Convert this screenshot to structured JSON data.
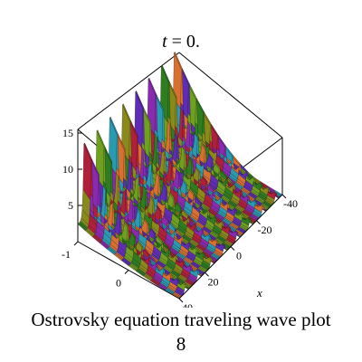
{
  "chart_data": {
    "type": "surface3d",
    "title": "t = 0.",
    "title_var": "t",
    "title_rest": " = 0.",
    "xlabel": "x",
    "ylabel": "",
    "zlabel": "",
    "x_ticks": [
      "-40",
      "-20",
      "0",
      "20",
      "40"
    ],
    "y_ticks": [
      "-1",
      "0"
    ],
    "z_ticks": [
      "5",
      "10",
      "15"
    ],
    "x_range": [
      -40,
      40
    ],
    "y_range": [
      -1,
      1
    ],
    "z_range": [
      0,
      16
    ],
    "peak_count": 8,
    "peak_height": 16
  },
  "caption": {
    "line1": "Ostrovsky equation  traveling wave plot",
    "line2": "8"
  },
  "colors": {
    "palette": [
      "#2e7d20",
      "#8a8a1a",
      "#b0203a",
      "#8a2ab0",
      "#2a9ab0",
      "#d87030",
      "#5f2db5",
      "#6fa020"
    ]
  }
}
